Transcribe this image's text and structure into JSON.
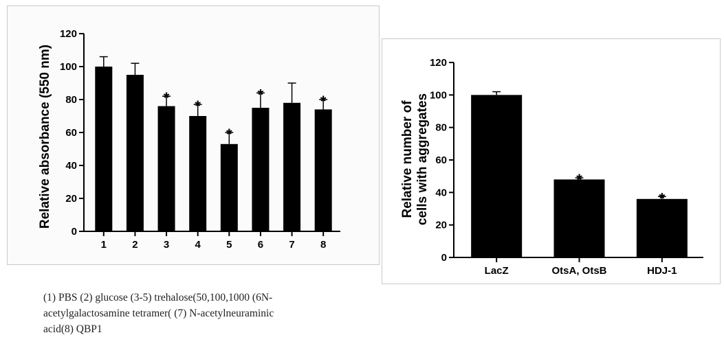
{
  "chart_data": [
    {
      "type": "bar",
      "title": "",
      "xlabel": "",
      "ylabel": "Relative absorbance (550 nm)",
      "ylim": [
        0,
        120
      ],
      "yticks": [
        0,
        20,
        40,
        60,
        80,
        100,
        120
      ],
      "categories": [
        "1",
        "2",
        "3",
        "4",
        "5",
        "6",
        "7",
        "8"
      ],
      "values": [
        100,
        95,
        76,
        70,
        53,
        75,
        78,
        74
      ],
      "errors": [
        6,
        7,
        6,
        7,
        7,
        9,
        12,
        6
      ],
      "significant": [
        false,
        false,
        true,
        true,
        true,
        true,
        false,
        true
      ],
      "significance_marker": "*",
      "bar_color": "#000000",
      "grid": false
    },
    {
      "type": "bar",
      "title": "",
      "xlabel": "",
      "ylabel_lines": [
        "Relative number of",
        "cells with aggregates"
      ],
      "ylim": [
        0,
        120
      ],
      "yticks": [
        0,
        20,
        40,
        60,
        80,
        100,
        120
      ],
      "categories": [
        "LacZ",
        "OtsA, OtsB",
        "HDJ-1"
      ],
      "values": [
        100,
        48,
        36
      ],
      "errors": [
        2,
        1,
        1.5
      ],
      "significant": [
        false,
        true,
        true
      ],
      "significance_marker": "*",
      "bar_color": "#000000",
      "grid": false
    }
  ],
  "caption": {
    "lines": [
      "(1) PBS (2) glucose (3-5) trehalose(50,100,1000 (6N-",
      "acetylgalactosamine tetramer( (7) N-acetylneuraminic",
      "acid(8) QBP1"
    ]
  }
}
